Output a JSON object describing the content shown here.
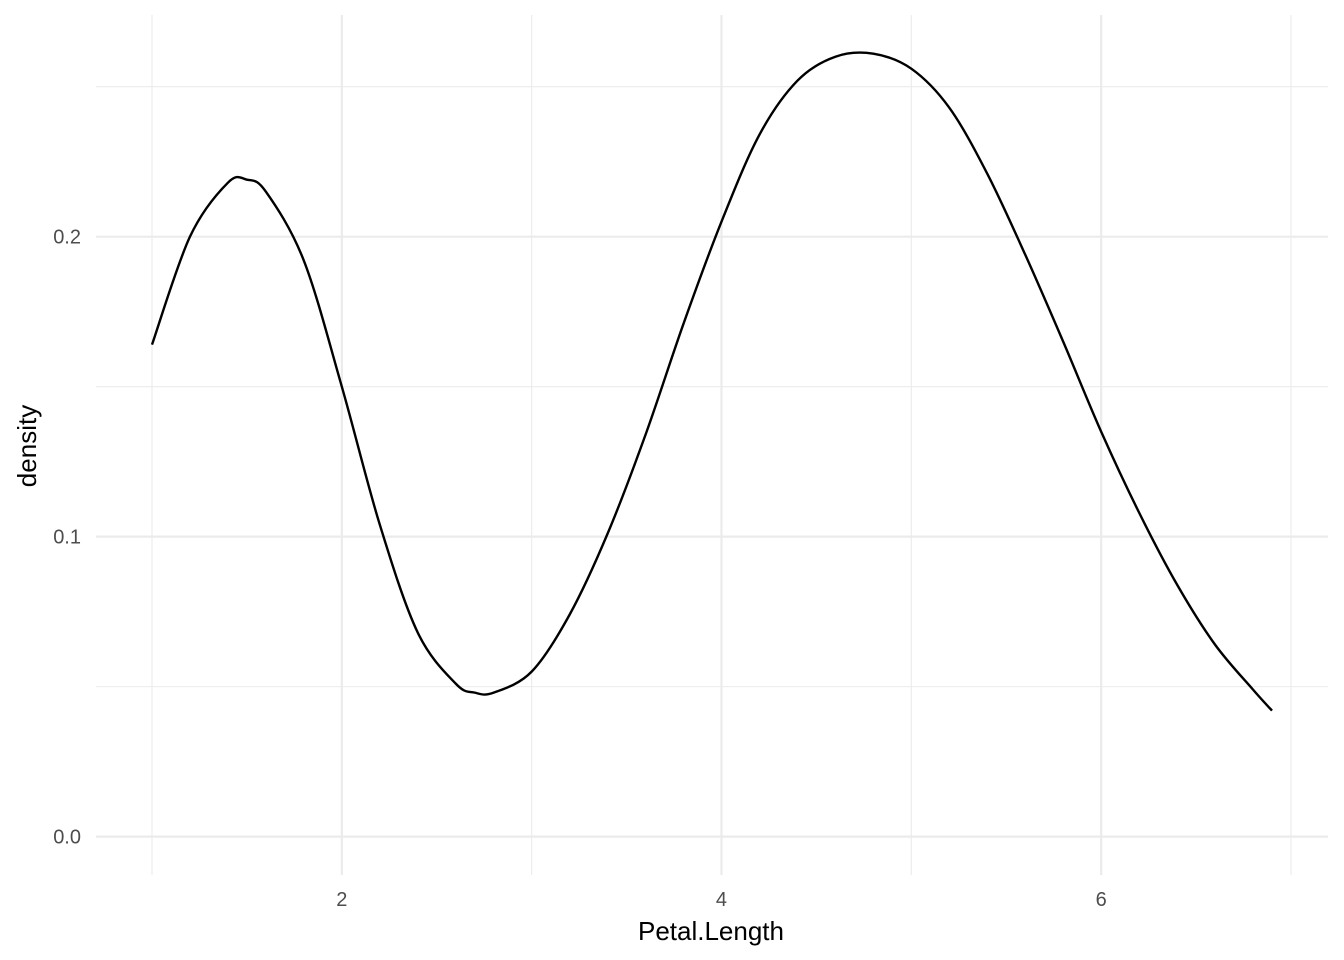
{
  "chart_data": {
    "type": "line",
    "title": "",
    "xlabel": "Petal.Length",
    "ylabel": "density",
    "xlim": [
      0.705,
      7.195
    ],
    "ylim": [
      -0.0128,
      0.2739
    ],
    "x_ticks": [
      2,
      4,
      6
    ],
    "x_tick_labels": [
      "2",
      "4",
      "6"
    ],
    "x_minor_ticks": [
      1,
      3,
      5,
      7
    ],
    "y_ticks": [
      0.0,
      0.1,
      0.2
    ],
    "y_tick_labels": [
      "0.0",
      "0.1",
      "0.2"
    ],
    "y_minor_ticks": [
      0.05,
      0.15,
      0.25
    ],
    "grid": true,
    "legend": "none",
    "series": [
      {
        "x": [
          1.0,
          1.2,
          1.4,
          1.5,
          1.6,
          1.8,
          2.0,
          2.2,
          2.4,
          2.6,
          2.7,
          2.8,
          3.0,
          3.2,
          3.4,
          3.6,
          3.8,
          4.0,
          4.2,
          4.4,
          4.6,
          4.8,
          5.0,
          5.2,
          5.4,
          5.6,
          5.8,
          6.0,
          6.2,
          6.4,
          6.6,
          6.8,
          6.9
        ],
        "y": [
          0.164,
          0.2,
          0.218,
          0.219,
          0.215,
          0.192,
          0.15,
          0.104,
          0.068,
          0.051,
          0.048,
          0.048,
          0.055,
          0.074,
          0.101,
          0.134,
          0.171,
          0.205,
          0.234,
          0.252,
          0.26,
          0.261,
          0.256,
          0.243,
          0.221,
          0.194,
          0.165,
          0.135,
          0.108,
          0.084,
          0.064,
          0.049,
          0.042
        ]
      }
    ],
    "colors": {
      "line": "#000000",
      "grid_major": "#ebebeb",
      "grid_minor": "#ebebeb",
      "tick_label": "#4d4d4d",
      "background": "#ffffff"
    }
  }
}
